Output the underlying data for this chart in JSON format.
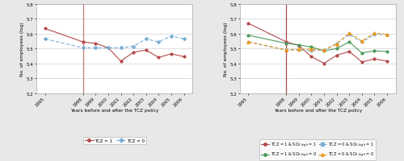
{
  "years": [
    1995,
    1998,
    1999,
    2000,
    2001,
    2002,
    2003,
    2004,
    2005,
    2006
  ],
  "left_tcz1": [
    5.635,
    5.545,
    5.535,
    5.505,
    5.415,
    5.475,
    5.49,
    5.44,
    5.465,
    5.445
  ],
  "left_tcz0": [
    5.565,
    5.505,
    5.505,
    5.505,
    5.505,
    5.515,
    5.565,
    5.545,
    5.585,
    5.565
  ],
  "right_tcz1_so2high": [
    5.67,
    5.545,
    5.52,
    5.445,
    5.4,
    5.455,
    5.48,
    5.41,
    5.43,
    5.415
  ],
  "right_tcz1_so2low": [
    5.59,
    5.535,
    5.525,
    5.51,
    5.485,
    5.5,
    5.545,
    5.47,
    5.485,
    5.48
  ],
  "right_tcz0_so2high": [
    5.545,
    5.49,
    5.49,
    5.485,
    5.49,
    5.535,
    5.595,
    5.545,
    5.595,
    5.595
  ],
  "right_tcz0_so2low": [
    5.545,
    5.49,
    5.495,
    5.495,
    5.49,
    5.53,
    5.605,
    5.55,
    5.605,
    5.595
  ],
  "vline_x": 1998,
  "ylim": [
    5.2,
    5.8
  ],
  "yticks": [
    5.2,
    5.3,
    5.4,
    5.5,
    5.6,
    5.7,
    5.8
  ],
  "xlabel": "Years before and after the TCZ policy",
  "ylabel": "No. of employees (log)",
  "color_tcz1": "#b5494a",
  "color_tcz0": "#7baed4",
  "color_r1": "#b5494a",
  "color_r2": "#4a9a5a",
  "color_r3": "#7baed4",
  "color_r4": "#e8971e",
  "fig_bg": "#e8e8e8",
  "plot_bg": "#ffffff",
  "vline_color": "#c47878"
}
